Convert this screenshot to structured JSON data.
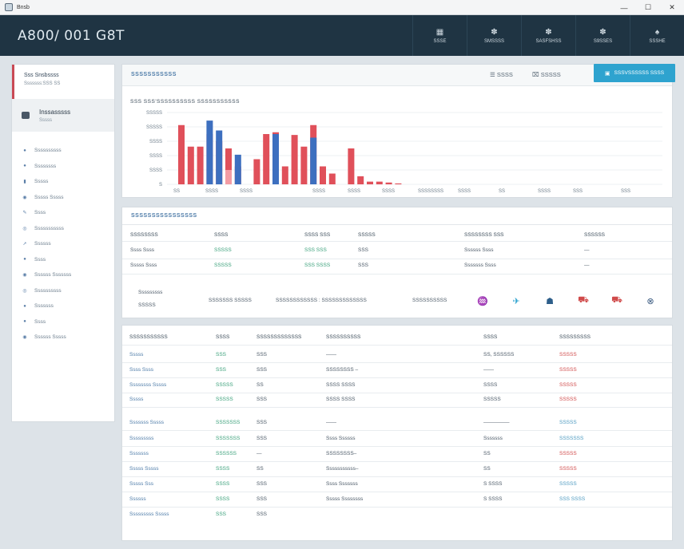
{
  "window": {
    "title": "Bnsb",
    "controls": [
      "—",
      "☐",
      "✕"
    ]
  },
  "header": {
    "brand": "A800/ 001 G8T",
    "nav": [
      {
        "icon": "grid-icon",
        "glyph": "▦",
        "label": "SSSE"
      },
      {
        "icon": "gear-icon",
        "glyph": "✽",
        "label": "SMSSSS"
      },
      {
        "icon": "gear-icon",
        "glyph": "✽",
        "label": "SASFSHSS"
      },
      {
        "icon": "settings-icon",
        "glyph": "✽",
        "label": "S9SSES"
      },
      {
        "icon": "bell-icon",
        "glyph": "♠",
        "label": "SSSHE"
      }
    ]
  },
  "sidebar": {
    "header_line1": "Sss Snsbssss",
    "header_line2": "Sssssss:SSS SS",
    "user_name": "Inssasssss",
    "user_sub": "Sssss",
    "items": [
      {
        "icon": "dot-icon",
        "glyph": "●",
        "label": "Ssssssssss"
      },
      {
        "icon": "dot-icon",
        "glyph": "●",
        "label": "Ssssssss"
      },
      {
        "icon": "doc-icon",
        "glyph": "▮",
        "label": "Sssss"
      },
      {
        "icon": "globe-icon",
        "glyph": "◉",
        "label": "Sssss Sssss"
      },
      {
        "icon": "pencil-icon",
        "glyph": "✎",
        "label": "Ssss"
      },
      {
        "icon": "chain-icon",
        "glyph": "◎",
        "label": "Sssssssssss"
      },
      {
        "icon": "arrow-icon",
        "glyph": "➚",
        "label": "Ssssss"
      },
      {
        "icon": "dot-icon",
        "glyph": "●",
        "label": "Ssss"
      },
      {
        "icon": "globe-icon",
        "glyph": "◉",
        "label": "Ssssss Sssssss"
      },
      {
        "icon": "chain-icon",
        "glyph": "◎",
        "label": "Ssssssssss"
      },
      {
        "icon": "dot-icon",
        "glyph": "●",
        "label": "Sssssss"
      },
      {
        "icon": "dot-icon",
        "glyph": "●",
        "label": "Ssss"
      },
      {
        "icon": "globe-icon",
        "glyph": "◉",
        "label": "Ssssss Sssss"
      }
    ]
  },
  "chart_panel": {
    "title": "SSSSSSSSSSS",
    "tool1_icon": "☰",
    "tool1_label": "SSSS",
    "tool2_icon": "⌧",
    "tool2_label": "SSSSS",
    "button_label": "SSSVSSSSSS SSSS",
    "chart_title": "SSS SSS'SSSSSSSSSS SSSSSSSSSSS"
  },
  "chart_data": {
    "type": "bar",
    "y_ticks": [
      "SSSSS",
      "SSSSS",
      "SSSS",
      "SSSS",
      "SSSS",
      "S"
    ],
    "x_ticks": [
      "SS",
      "SSSS",
      "SSSS",
      "SSSS",
      "SSSS",
      "SSSS",
      "SSSS",
      "SSSS",
      "SSSS",
      "SS",
      "SSSS",
      "SSS",
      "SSS"
    ],
    "series": [
      {
        "color": "#e0505a",
        "values": [
          66,
          42,
          42,
          56,
          48,
          40,
          20,
          0,
          28,
          56,
          58,
          20,
          55,
          42,
          66,
          20,
          12,
          0,
          40,
          9,
          3,
          3,
          2,
          1
        ]
      },
      {
        "color": "#3d6fbf",
        "values": [
          0,
          0,
          0,
          71,
          60,
          0,
          33,
          0,
          0,
          0,
          56,
          0,
          0,
          0,
          52,
          0,
          0,
          0,
          0,
          0,
          0,
          0,
          0,
          0
        ]
      },
      {
        "color": "#f39ca4",
        "values": [
          0,
          0,
          0,
          0,
          0,
          16,
          0,
          0,
          0,
          0,
          0,
          0,
          0,
          0,
          0,
          0,
          0,
          0,
          0,
          0,
          0,
          0,
          0,
          0
        ]
      }
    ]
  },
  "detail_panel": {
    "title": "SSSSSSSSSSSSSSSS",
    "headers": [
      "SSSSSSSS",
      "SSSS",
      "SSSS SSS",
      "SSSSS",
      "SSSSSSSS SSS",
      "SSSSSS"
    ],
    "rows": [
      [
        "Ssss Ssss",
        "SSSSS",
        "SSS SSS",
        "SSS",
        "Ssssss Ssss",
        "—"
      ],
      [
        "Sssss Ssss",
        "SSSSS",
        "SSS SSSS",
        "SSS",
        "Sssssss Ssss",
        "—"
      ]
    ],
    "foot_label1": "Sssssssss",
    "foot_label2": "SSSSS",
    "foot_values": [
      "SSSSSSS SSSSS",
      "SSSSSSSSSSSS : SSSSSSSSSSSSS",
      "SSSSSSSSSS"
    ],
    "social": [
      {
        "icon": "wave-icon",
        "glyph": "♒"
      },
      {
        "icon": "bird-icon",
        "glyph": "✈"
      },
      {
        "icon": "person-icon",
        "glyph": "☗"
      },
      {
        "icon": "car-icon",
        "glyph": "⛟"
      },
      {
        "icon": "cart-icon",
        "glyph": "⛟"
      },
      {
        "icon": "crosshair-icon",
        "glyph": "⊗"
      }
    ]
  },
  "table": {
    "headers": [
      "SSSSSSSSSSS",
      "SSSS",
      "SSSSSSSSSSSSS",
      "SSSSSSSSSS",
      "SSSS",
      "SSSSSSSSS"
    ],
    "rows": [
      [
        "Sssss",
        "SSS",
        "SSS",
        "——",
        "SS, SSSSSS",
        "SSSSS"
      ],
      [
        "Ssss Ssss",
        "SSS",
        "SSS",
        "SSSSSSSS –",
        "——",
        "SSSSS"
      ],
      [
        "Ssssssss Sssss",
        "SSSSS",
        "SS",
        "SSSS SSSS",
        "SSSS",
        "SSSSS"
      ],
      [
        "Sssss",
        "SSSSS",
        "SSS",
        "SSSS SSSS",
        "SSSSS",
        "SSSSS"
      ],
      [
        "Sssssss Sssss",
        "SSSSSSS",
        "SSS",
        "——",
        "—————",
        "SSSSS"
      ],
      [
        "Sssssssss",
        "SSSSSSS",
        "SSS",
        "Ssss Ssssss",
        "Sssssss",
        "SSSSSSS"
      ],
      [
        "Sssssss",
        "SSSSSS",
        "—",
        "SSSSSSSS–",
        "SS",
        "SSSSS"
      ],
      [
        "Sssss Sssss",
        "SSSS",
        "SS",
        "Sssssssssss–",
        "SS",
        "SSSSS"
      ],
      [
        "Sssss Sss",
        "SSSS",
        "SSS",
        "Ssss Sssssss",
        "S SSSS",
        "SSSSS"
      ],
      [
        "Ssssss",
        "SSSS",
        "SSS",
        "Sssss Ssssssss",
        "S SSSS",
        "SSS SSSS"
      ],
      [
        "Sssssssss Sssss",
        "SSS",
        "SSS",
        "",
        "",
        ""
      ]
    ]
  }
}
